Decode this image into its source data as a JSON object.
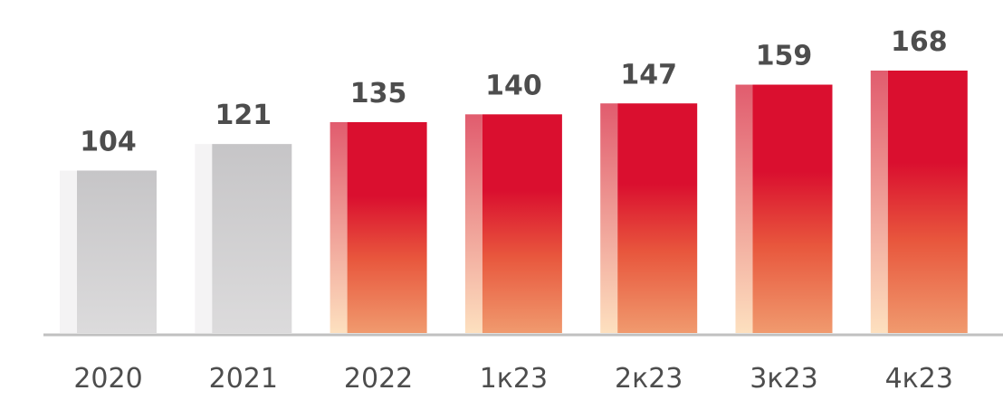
{
  "chart_data": {
    "type": "bar",
    "categories": [
      "2020",
      "2021",
      "2022",
      "1к23",
      "2к23",
      "3к23",
      "4к23"
    ],
    "values": [
      104,
      121,
      135,
      140,
      147,
      159,
      168
    ],
    "value_labels": [
      "104",
      "121",
      "135",
      "140",
      "147",
      "159",
      "168"
    ],
    "title": "",
    "xlabel": "",
    "ylabel": "",
    "ylim": [
      0,
      168
    ],
    "grid": false,
    "colors": {
      "gray_top": "#c6c5c7",
      "gray_bottom": "#dcdbdc",
      "gray_side": "#f4f3f4",
      "red_top": "#da0f2f",
      "red_mid": "#e8573d",
      "red_bottom": "#f09a6e",
      "red_side_top": "#e15c6e",
      "red_side_bottom": "#fde0bf",
      "axis": "#c0c0c0",
      "text": "#4d4d4d"
    },
    "highlight_from_index": 2
  }
}
